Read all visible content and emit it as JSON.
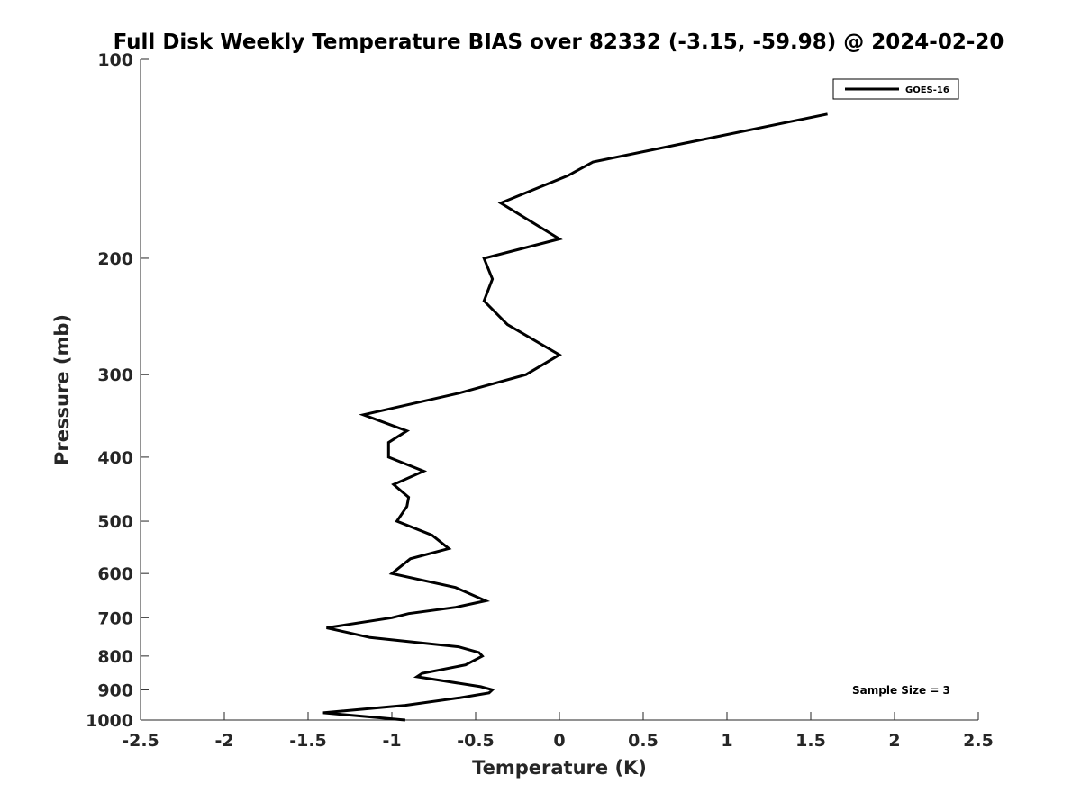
{
  "chart_data": {
    "type": "line",
    "title": "Full Disk Weekly Temperature BIAS over 82332 (-3.15, -59.98) @ 2024-02-20",
    "xlabel": "Temperature (K)",
    "ylabel": "Pressure (mb)",
    "xlim": [
      -2.5,
      2.5
    ],
    "ylim": [
      100,
      1000
    ],
    "yscale": "log",
    "yreversed": true,
    "xticks": [
      "-2.5",
      "-2",
      "-1.5",
      "-1",
      "-0.5",
      "0",
      "0.5",
      "1",
      "1.5",
      "2",
      "2.5"
    ],
    "yticks": [
      "100",
      "200",
      "300",
      "400",
      "500",
      "600",
      "700",
      "800",
      "900",
      "1000"
    ],
    "grid": false,
    "legend_position": "top-right",
    "annotation": "Sample Size = 3",
    "colors": {
      "series": "#000000",
      "axis": "#262626"
    },
    "series": [
      {
        "name": "GOES-16",
        "points": [
          [
            1.6,
            121
          ],
          [
            0.2,
            143
          ],
          [
            0.05,
            150
          ],
          [
            -0.35,
            165
          ],
          [
            0.0,
            187
          ],
          [
            -0.45,
            200
          ],
          [
            -0.4,
            215
          ],
          [
            -0.45,
            232
          ],
          [
            -0.31,
            252
          ],
          [
            0.0,
            280
          ],
          [
            -0.2,
            300
          ],
          [
            -0.6,
            320
          ],
          [
            -1.17,
            345
          ],
          [
            -0.91,
            365
          ],
          [
            -1.02,
            380
          ],
          [
            -1.02,
            400
          ],
          [
            -0.81,
            420
          ],
          [
            -0.99,
            440
          ],
          [
            -0.9,
            460
          ],
          [
            -0.91,
            475
          ],
          [
            -0.97,
            500
          ],
          [
            -0.76,
            525
          ],
          [
            -0.66,
            550
          ],
          [
            -0.89,
            570
          ],
          [
            -1.0,
            600
          ],
          [
            -0.62,
            630
          ],
          [
            -0.44,
            660
          ],
          [
            -0.62,
            675
          ],
          [
            -0.9,
            690
          ],
          [
            -1.0,
            700
          ],
          [
            -1.39,
            725
          ],
          [
            -1.13,
            750
          ],
          [
            -0.6,
            775
          ],
          [
            -0.48,
            790
          ],
          [
            -0.46,
            800
          ],
          [
            -0.56,
            825
          ],
          [
            -0.82,
            850
          ],
          [
            -0.85,
            860
          ],
          [
            -0.47,
            890
          ],
          [
            -0.4,
            900
          ],
          [
            -0.42,
            910
          ],
          [
            -0.59,
            925
          ],
          [
            -0.92,
            950
          ],
          [
            -1.41,
            975
          ],
          [
            -0.92,
            1000
          ]
        ]
      }
    ]
  }
}
